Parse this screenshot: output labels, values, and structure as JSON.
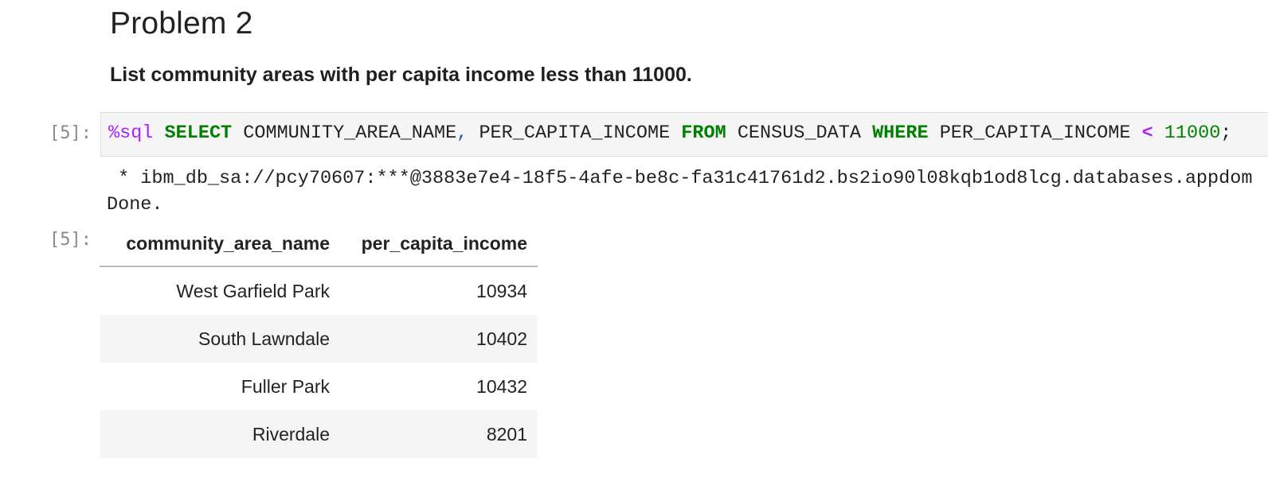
{
  "heading": "Problem 2",
  "description": "List community areas with per capita income less than 11000.",
  "input_prompt": "[5]:",
  "output_prompt": "[5]:",
  "code": {
    "magic": "%sql",
    "select_kw": "SELECT",
    "col1": "COMMUNITY_AREA_NAME",
    "comma": ",",
    "col2": "PER_CAPITA_INCOME",
    "from_kw": "FROM",
    "table": "CENSUS_DATA",
    "where_kw": "WHERE",
    "where_col": "PER_CAPITA_INCOME",
    "operator": "<",
    "number": "11000",
    "semicolon": ";"
  },
  "stdout": {
    "connection": " * ibm_db_sa://pcy70607:***@3883e7e4-18f5-4afe-be8c-fa31c41761d2.bs2io90l08kqb1od8lcg.databases.appdom",
    "status": "Done."
  },
  "result_table": {
    "columns": [
      "community_area_name",
      "per_capita_income"
    ],
    "rows": [
      [
        "West Garfield Park",
        "10934"
      ],
      [
        "South Lawndale",
        "10402"
      ],
      [
        "Fuller Park",
        "10432"
      ],
      [
        "Riverdale",
        "8201"
      ]
    ]
  }
}
